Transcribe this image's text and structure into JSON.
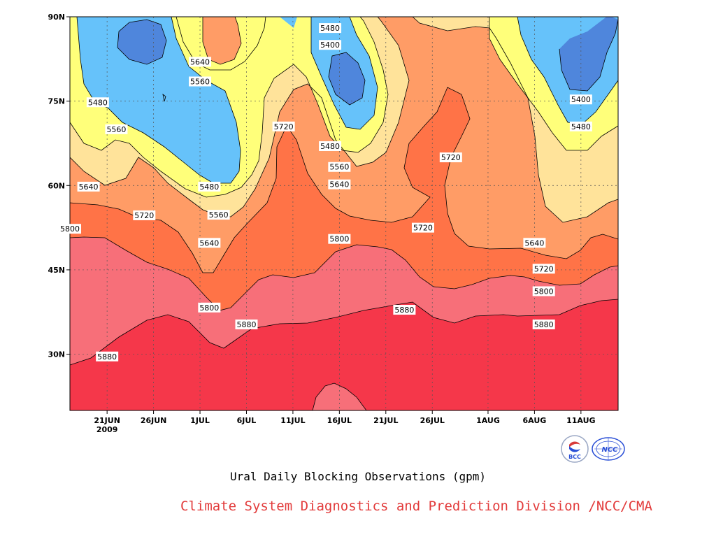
{
  "chart_data": {
    "type": "heatmap",
    "title": "Ural Daily Blocking Observations (gpm)",
    "xlabel": "",
    "ylabel": "",
    "x_start": "2009-06-17",
    "x_end": "2009-08-15",
    "x_ticks": [
      {
        "date": "2009-06-21",
        "label": "21JUN",
        "sub": "2009"
      },
      {
        "date": "2009-06-26",
        "label": "26JUN"
      },
      {
        "date": "2009-07-01",
        "label": "1JUL"
      },
      {
        "date": "2009-07-06",
        "label": "6JUL"
      },
      {
        "date": "2009-07-11",
        "label": "11JUL"
      },
      {
        "date": "2009-07-16",
        "label": "16JUL"
      },
      {
        "date": "2009-07-21",
        "label": "21JUL"
      },
      {
        "date": "2009-07-26",
        "label": "26JUL"
      },
      {
        "date": "2009-08-01",
        "label": "1AUG"
      },
      {
        "date": "2009-08-06",
        "label": "6AUG"
      },
      {
        "date": "2009-08-11",
        "label": "11AUG"
      }
    ],
    "ylim": [
      20,
      90
    ],
    "y_ticks": [
      {
        "value": 90,
        "label": "90N"
      },
      {
        "value": 75,
        "label": "75N"
      },
      {
        "value": 60,
        "label": "60N"
      },
      {
        "value": 45,
        "label": "45N"
      },
      {
        "value": 30,
        "label": "30N"
      }
    ],
    "grid": true,
    "levels": [
      5400,
      5480,
      5560,
      5640,
      5720,
      5800,
      5880
    ],
    "level_colors": {
      "below_5400": "#4f86dc",
      "5400_5480": "#66c2fa",
      "5480_5560": "#ffff7a",
      "5560_5640": "#ffe39a",
      "5640_5720": "#ff9c66",
      "5720_5800": "#ff7347",
      "5800_5880": "#f76f79",
      "5880_5960": "#f5374a",
      "above_5960": "#f76f79"
    },
    "contour_labels": [
      {
        "date": "2009-07-15",
        "lat": 88.0,
        "text": "5480"
      },
      {
        "date": "2009-07-15",
        "lat": 85.0,
        "text": "5400"
      },
      {
        "date": "2009-07-01",
        "lat": 82.0,
        "text": "5640"
      },
      {
        "date": "2009-07-01",
        "lat": 78.5,
        "text": "5560"
      },
      {
        "date": "2009-06-20",
        "lat": 74.8,
        "text": "5480"
      },
      {
        "date": "2009-06-22",
        "lat": 70.0,
        "text": "5560"
      },
      {
        "date": "2009-07-10",
        "lat": 70.5,
        "text": "5720"
      },
      {
        "date": "2009-07-15",
        "lat": 67.0,
        "text": "5480"
      },
      {
        "date": "2009-07-16",
        "lat": 63.3,
        "text": "5560"
      },
      {
        "date": "2009-07-16",
        "lat": 60.2,
        "text": "5640"
      },
      {
        "date": "2009-06-19",
        "lat": 59.8,
        "text": "5640"
      },
      {
        "date": "2009-07-02",
        "lat": 59.8,
        "text": "5480"
      },
      {
        "date": "2009-07-03",
        "lat": 54.8,
        "text": "5560"
      },
      {
        "date": "2009-06-25",
        "lat": 54.7,
        "text": "5720"
      },
      {
        "date": "2009-07-02",
        "lat": 49.8,
        "text": "5640"
      },
      {
        "date": "2009-07-25",
        "lat": 52.5,
        "text": "5720"
      },
      {
        "date": "2009-06-17",
        "lat": 52.3,
        "text": "5800"
      },
      {
        "date": "2009-07-16",
        "lat": 50.5,
        "text": "5800"
      },
      {
        "date": "2009-07-28",
        "lat": 65.0,
        "text": "5720"
      },
      {
        "date": "2009-08-11",
        "lat": 75.3,
        "text": "5400"
      },
      {
        "date": "2009-08-11",
        "lat": 70.5,
        "text": "5480"
      },
      {
        "date": "2009-08-06",
        "lat": 49.8,
        "text": "5640"
      },
      {
        "date": "2009-08-07",
        "lat": 45.2,
        "text": "5720"
      },
      {
        "date": "2009-08-07",
        "lat": 41.2,
        "text": "5800"
      },
      {
        "date": "2009-08-07",
        "lat": 35.3,
        "text": "5880"
      },
      {
        "date": "2009-07-02",
        "lat": 38.3,
        "text": "5800"
      },
      {
        "date": "2009-07-06",
        "lat": 35.3,
        "text": "5880"
      },
      {
        "date": "2009-07-23",
        "lat": 37.9,
        "text": "5880"
      },
      {
        "date": "2009-06-21",
        "lat": 29.6,
        "text": "5880"
      }
    ]
  },
  "credit": "Climate System Diagnostics and Prediction Division /NCC/CMA",
  "logos": [
    {
      "name": "bcc-logo",
      "text": "BCC",
      "color": "#2a4fd6"
    },
    {
      "name": "ncc-logo",
      "text": "NCC",
      "color": "#2a4fd6"
    }
  ]
}
